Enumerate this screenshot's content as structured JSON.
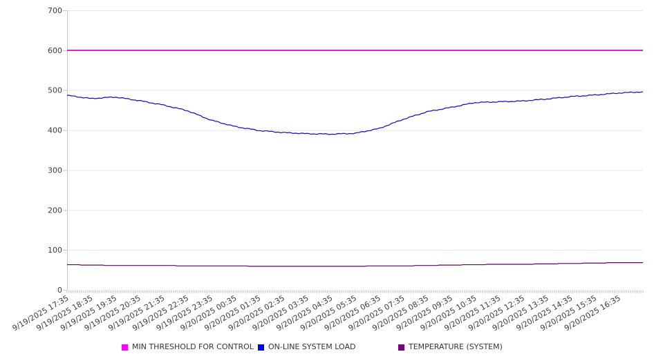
{
  "chart_data": {
    "type": "line",
    "title": "",
    "xlabel": "",
    "ylabel": "",
    "ylim": [
      0,
      700
    ],
    "grid": true,
    "legend_position": "bottom",
    "minor_ticks_per_hour": 12,
    "y_ticks": [
      0,
      100,
      200,
      300,
      400,
      500,
      600,
      700
    ],
    "x_labels": [
      "9/19/2025 17:35",
      "9/19/2025 18:35",
      "9/19/2025 19:35",
      "9/19/2025 20:35",
      "9/19/2025 21:35",
      "9/19/2025 22:35",
      "9/19/2025 23:35",
      "9/20/2025 00:35",
      "9/20/2025 01:35",
      "9/20/2025 02:35",
      "9/20/2025 03:35",
      "9/20/2025 04:35",
      "9/20/2025 05:35",
      "9/20/2025 06:35",
      "9/20/2025 07:35",
      "9/20/2025 08:35",
      "9/20/2025 09:35",
      "9/20/2025 10:35",
      "9/20/2025 11:35",
      "9/20/2025 12:35",
      "9/20/2025 13:35",
      "9/20/2025 14:35",
      "9/20/2025 15:35",
      "9/20/2025 16:35"
    ],
    "series": [
      {
        "name": "MIN THRESHOLD FOR CONTROL",
        "color": "#d803d8",
        "swatch_color": "#ff00ff",
        "values": [
          600,
          600,
          600,
          600,
          600,
          600,
          600,
          600,
          600,
          600,
          600,
          600,
          600,
          600,
          600,
          600,
          600,
          600,
          600,
          600,
          600,
          600,
          600,
          600,
          600
        ]
      },
      {
        "name": "ON-LINE SYSTEM LOAD",
        "color": "#0707bd",
        "swatch_color": "#0000ee",
        "values": [
          487,
          479,
          483,
          474,
          463,
          449,
          425,
          409,
          399,
          394,
          391,
          390,
          392,
          404,
          427,
          446,
          457,
          469,
          471,
          473,
          478,
          484,
          488,
          493,
          496
        ]
      },
      {
        "name": "TEMPERATURE (SYSTEM)",
        "color": "#5e005e",
        "swatch_color": "#770077",
        "values": [
          63,
          62,
          61,
          61,
          61,
          60,
          60,
          60,
          59,
          59,
          59,
          59,
          59,
          60,
          60,
          61,
          62,
          63,
          64,
          64,
          65,
          66,
          67,
          68,
          68
        ]
      }
    ]
  },
  "colors": {
    "grid": "#e4e4e4",
    "axis": "#c6c6c6",
    "minor_tick": "#b9b9b9",
    "tick_label": "#3c3c3c"
  }
}
